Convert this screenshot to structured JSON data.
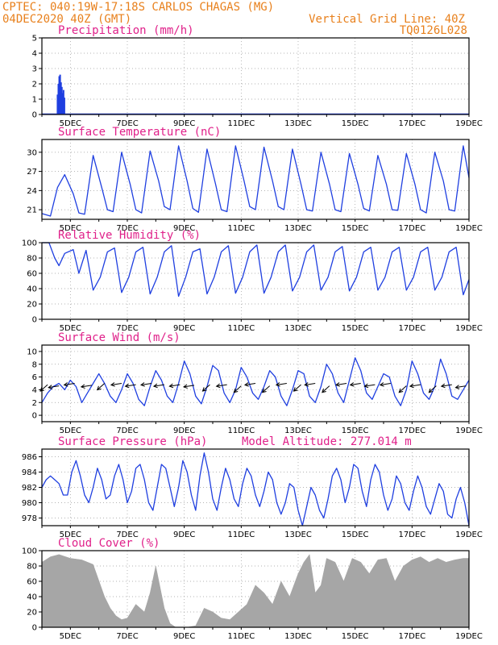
{
  "header": {
    "line1": "CPTEC:  040:19W-17:18S  CARLOS CHAGAS (MG)",
    "line2": "04DEC2020 40Z (GMT)",
    "grid_note": "Vertical Grid Line: 40Z",
    "code": "TQ0126L028"
  },
  "colors": {
    "header": "#e8801c",
    "title": "#e0218a",
    "series": "#1f3fe0",
    "cloud": "#a6a6a6",
    "wind_arrow": "#000000",
    "grid": "#9a9a9a"
  },
  "x_axis": {
    "start_day": 4,
    "end_day": 19,
    "tick_days": [
      5,
      7,
      9,
      11,
      13,
      15,
      17,
      19
    ],
    "tick_labels": [
      "5DEC",
      "7DEC",
      "9DEC",
      "11DEC",
      "13DEC",
      "15DEC",
      "17DEC",
      "19DEC"
    ]
  },
  "chart_data": [
    {
      "id": "precip",
      "type": "bar",
      "title": "Precipitation (mm/h)",
      "ylim": [
        0,
        5
      ],
      "yticks": [
        0,
        1,
        2,
        3,
        4,
        5
      ],
      "grid": true,
      "x": [
        4.55,
        4.58,
        4.61,
        4.64,
        4.67,
        4.7,
        4.73,
        4.76,
        4.79
      ],
      "values": [
        1.3,
        2.0,
        2.5,
        2.6,
        2.1,
        1.8,
        1.4,
        1.6,
        1.1
      ]
    },
    {
      "id": "temp",
      "type": "line",
      "title": "Surface Temperature (nC)",
      "ylim": [
        19.5,
        32
      ],
      "yticks": [
        21,
        24,
        27,
        30
      ],
      "grid": true,
      "x": [
        4.0,
        4.3,
        4.55,
        4.8,
        5.1,
        5.3,
        5.5,
        5.8,
        6.1,
        6.3,
        6.5,
        6.8,
        7.1,
        7.3,
        7.5,
        7.8,
        8.1,
        8.3,
        8.5,
        8.8,
        9.1,
        9.3,
        9.5,
        9.8,
        10.1,
        10.3,
        10.5,
        10.8,
        11.1,
        11.3,
        11.5,
        11.8,
        12.1,
        12.3,
        12.5,
        12.8,
        13.1,
        13.3,
        13.5,
        13.8,
        14.1,
        14.3,
        14.5,
        14.8,
        15.1,
        15.3,
        15.5,
        15.8,
        16.1,
        16.3,
        16.5,
        16.8,
        17.1,
        17.3,
        17.5,
        17.8,
        18.1,
        18.3,
        18.5,
        18.8,
        19.0
      ],
      "y": [
        20.4,
        20.0,
        24.5,
        26.5,
        23.5,
        20.5,
        20.3,
        29.5,
        24.5,
        21.0,
        20.7,
        30.0,
        25.0,
        21.0,
        20.5,
        30.2,
        25.5,
        21.5,
        21.0,
        31.0,
        25.5,
        21.2,
        20.6,
        30.5,
        25.0,
        21.0,
        20.7,
        31.0,
        25.5,
        21.5,
        21.0,
        30.8,
        25.5,
        21.5,
        21.0,
        30.5,
        25.0,
        21.0,
        20.8,
        30.0,
        25.0,
        21.0,
        20.7,
        29.8,
        25.0,
        21.2,
        20.8,
        29.5,
        25.0,
        21.0,
        20.9,
        29.8,
        25.0,
        21.0,
        20.5,
        30.0,
        25.5,
        21.0,
        20.8,
        31.0,
        26.0
      ]
    },
    {
      "id": "rh",
      "type": "line",
      "title": "Relative Humidity (%)",
      "ylim": [
        0,
        100
      ],
      "yticks": [
        0,
        20,
        40,
        60,
        80,
        100
      ],
      "grid": true,
      "x": [
        4.0,
        4.25,
        4.45,
        4.6,
        4.8,
        5.1,
        5.3,
        5.55,
        5.8,
        6.05,
        6.3,
        6.55,
        6.8,
        7.05,
        7.3,
        7.55,
        7.8,
        8.05,
        8.3,
        8.55,
        8.8,
        9.05,
        9.3,
        9.55,
        9.8,
        10.05,
        10.3,
        10.55,
        10.8,
        11.05,
        11.3,
        11.55,
        11.8,
        12.05,
        12.3,
        12.55,
        12.8,
        13.05,
        13.3,
        13.55,
        13.8,
        14.05,
        14.3,
        14.55,
        14.8,
        15.05,
        15.3,
        15.55,
        15.8,
        16.05,
        16.3,
        16.55,
        16.8,
        17.05,
        17.3,
        17.55,
        17.8,
        18.05,
        18.3,
        18.55,
        18.8,
        19.0
      ],
      "y": [
        100,
        100,
        80,
        70,
        86,
        91,
        60,
        90,
        38,
        55,
        88,
        93,
        35,
        55,
        88,
        94,
        33,
        55,
        88,
        96,
        30,
        55,
        88,
        92,
        33,
        55,
        88,
        96,
        34,
        55,
        88,
        97,
        34,
        55,
        88,
        97,
        37,
        55,
        88,
        97,
        38,
        55,
        88,
        95,
        37,
        55,
        88,
        94,
        38,
        55,
        88,
        94,
        38,
        55,
        88,
        94,
        38,
        55,
        88,
        94,
        32,
        52
      ]
    },
    {
      "id": "wind",
      "type": "line",
      "title": "Surface Wind (m/s)",
      "ylim": [
        -1,
        11
      ],
      "yticks": [
        0,
        2,
        4,
        6,
        8,
        10
      ],
      "grid": true,
      "x": [
        4.0,
        4.2,
        4.4,
        4.6,
        4.8,
        5.0,
        5.2,
        5.4,
        5.6,
        5.8,
        6.0,
        6.2,
        6.4,
        6.6,
        6.8,
        7.0,
        7.2,
        7.4,
        7.6,
        7.8,
        8.0,
        8.2,
        8.4,
        8.6,
        8.8,
        9.0,
        9.2,
        9.4,
        9.6,
        9.8,
        10.0,
        10.2,
        10.4,
        10.6,
        10.8,
        11.0,
        11.2,
        11.4,
        11.6,
        11.8,
        12.0,
        12.2,
        12.4,
        12.6,
        12.8,
        13.0,
        13.2,
        13.4,
        13.6,
        13.8,
        14.0,
        14.2,
        14.4,
        14.6,
        14.8,
        15.0,
        15.2,
        15.4,
        15.6,
        15.8,
        16.0,
        16.2,
        16.4,
        16.6,
        16.8,
        17.0,
        17.2,
        17.4,
        17.6,
        17.8,
        18.0,
        18.2,
        18.4,
        18.6,
        18.8,
        19.0
      ],
      "y": [
        2.0,
        3.5,
        4.5,
        5.0,
        4.0,
        5.5,
        4.5,
        2.0,
        3.5,
        5.0,
        6.5,
        5.0,
        3.0,
        2.0,
        4.0,
        6.5,
        5.0,
        2.5,
        1.5,
        4.5,
        7.0,
        5.5,
        3.0,
        2.0,
        5.0,
        8.5,
        6.5,
        3.0,
        1.8,
        4.5,
        7.8,
        7.0,
        3.5,
        2.0,
        4.0,
        7.5,
        6.0,
        3.5,
        2.5,
        4.5,
        7.0,
        6.0,
        3.0,
        1.5,
        4.0,
        7.0,
        6.5,
        3.0,
        2.0,
        4.5,
        8.0,
        6.5,
        3.5,
        2.0,
        5.5,
        9.0,
        7.0,
        3.5,
        2.5,
        4.5,
        6.5,
        6.0,
        3.0,
        1.5,
        4.0,
        8.5,
        6.5,
        3.5,
        2.5,
        4.5,
        8.8,
        6.5,
        3.0,
        2.5,
        4.0,
        5.5
      ],
      "arrows": [
        {
          "day": 4.2,
          "y": 4.8,
          "dir": "SW"
        },
        {
          "day": 4.6,
          "y": 4.6,
          "dir": "W"
        },
        {
          "day": 5.15,
          "y": 5.0,
          "dir": "W"
        },
        {
          "day": 5.75,
          "y": 4.7,
          "dir": "W"
        },
        {
          "day": 6.2,
          "y": 5.0,
          "dir": "SW"
        },
        {
          "day": 6.8,
          "y": 5.0,
          "dir": "W"
        },
        {
          "day": 7.3,
          "y": 4.8,
          "dir": "W"
        },
        {
          "day": 7.85,
          "y": 5.0,
          "dir": "W"
        },
        {
          "day": 8.3,
          "y": 4.8,
          "dir": "W"
        },
        {
          "day": 8.85,
          "y": 4.8,
          "dir": "W"
        },
        {
          "day": 9.35,
          "y": 4.7,
          "dir": "W"
        },
        {
          "day": 9.9,
          "y": 4.8,
          "dir": "SW"
        },
        {
          "day": 10.5,
          "y": 4.8,
          "dir": "W"
        },
        {
          "day": 11.0,
          "y": 4.6,
          "dir": "SW"
        },
        {
          "day": 11.5,
          "y": 5.0,
          "dir": "W"
        },
        {
          "day": 12.0,
          "y": 4.6,
          "dir": "SW"
        },
        {
          "day": 12.6,
          "y": 5.0,
          "dir": "W"
        },
        {
          "day": 13.1,
          "y": 4.8,
          "dir": "SW"
        },
        {
          "day": 13.6,
          "y": 5.0,
          "dir": "W"
        },
        {
          "day": 14.1,
          "y": 4.6,
          "dir": "SW"
        },
        {
          "day": 14.7,
          "y": 5.0,
          "dir": "W"
        },
        {
          "day": 15.2,
          "y": 5.0,
          "dir": "W"
        },
        {
          "day": 15.7,
          "y": 4.8,
          "dir": "W"
        },
        {
          "day": 16.25,
          "y": 5.0,
          "dir": "W"
        },
        {
          "day": 16.8,
          "y": 4.6,
          "dir": "SW"
        },
        {
          "day": 17.3,
          "y": 4.8,
          "dir": "W"
        },
        {
          "day": 17.85,
          "y": 4.6,
          "dir": "SW"
        },
        {
          "day": 18.4,
          "y": 4.8,
          "dir": "W"
        },
        {
          "day": 18.9,
          "y": 4.6,
          "dir": "W"
        }
      ]
    },
    {
      "id": "pressure",
      "type": "line",
      "title": "Surface Pressure (hPa)",
      "annotation": "Model Altitude: 277.014 m",
      "ylim": [
        977,
        987
      ],
      "yticks": [
        978,
        980,
        982,
        984,
        986
      ],
      "grid": true,
      "x": [
        4.0,
        4.15,
        4.3,
        4.45,
        4.6,
        4.75,
        4.9,
        5.05,
        5.2,
        5.35,
        5.5,
        5.65,
        5.8,
        5.95,
        6.1,
        6.25,
        6.4,
        6.55,
        6.7,
        6.85,
        7.0,
        7.15,
        7.3,
        7.45,
        7.6,
        7.75,
        7.9,
        8.05,
        8.2,
        8.35,
        8.5,
        8.65,
        8.8,
        8.95,
        9.1,
        9.25,
        9.4,
        9.55,
        9.7,
        9.85,
        10.0,
        10.15,
        10.3,
        10.45,
        10.6,
        10.75,
        10.9,
        11.05,
        11.2,
        11.35,
        11.5,
        11.65,
        11.8,
        11.95,
        12.1,
        12.25,
        12.4,
        12.55,
        12.7,
        12.85,
        13.0,
        13.15,
        13.3,
        13.45,
        13.6,
        13.75,
        13.9,
        14.05,
        14.2,
        14.35,
        14.5,
        14.65,
        14.8,
        14.95,
        15.1,
        15.25,
        15.4,
        15.55,
        15.7,
        15.85,
        16.0,
        16.15,
        16.3,
        16.45,
        16.6,
        16.75,
        16.9,
        17.05,
        17.2,
        17.35,
        17.5,
        17.65,
        17.8,
        17.95,
        18.1,
        18.25,
        18.4,
        18.55,
        18.7,
        18.85,
        19.0
      ],
      "y": [
        982.0,
        983.0,
        983.5,
        983.0,
        982.5,
        981.0,
        981.0,
        984.0,
        985.5,
        983.5,
        981.0,
        980.0,
        982.0,
        984.5,
        983.0,
        980.5,
        981.0,
        983.5,
        985.0,
        983.0,
        980.0,
        981.5,
        984.5,
        985.0,
        983.0,
        980.0,
        979.0,
        982.0,
        985.0,
        984.5,
        982.0,
        979.5,
        982.0,
        985.5,
        984.0,
        981.0,
        979.0,
        983.5,
        986.5,
        984.0,
        980.5,
        979.0,
        982.0,
        984.5,
        983.0,
        980.5,
        979.5,
        982.5,
        984.5,
        983.5,
        981.0,
        979.5,
        981.5,
        984.0,
        983.0,
        980.0,
        978.5,
        980.0,
        982.5,
        982.0,
        979.0,
        977.0,
        979.5,
        982.0,
        981.0,
        979.0,
        978.0,
        980.5,
        983.5,
        984.5,
        983.0,
        980.0,
        982.0,
        985.0,
        984.5,
        981.5,
        979.5,
        983.0,
        985.0,
        984.0,
        981.0,
        979.0,
        980.5,
        983.5,
        982.5,
        980.0,
        979.0,
        981.5,
        983.5,
        982.0,
        979.5,
        978.5,
        980.5,
        982.5,
        981.5,
        978.5,
        978.0,
        980.5,
        982.0,
        980.0,
        977.0
      ]
    },
    {
      "id": "cloud",
      "type": "area",
      "title": "Cloud Cover (%)",
      "ylim": [
        0,
        100
      ],
      "yticks": [
        0,
        20,
        40,
        60,
        80,
        100
      ],
      "grid": true,
      "x": [
        4.0,
        4.3,
        4.6,
        5.0,
        5.4,
        5.8,
        6.2,
        6.4,
        6.6,
        6.8,
        7.0,
        7.3,
        7.6,
        7.8,
        8.0,
        8.3,
        8.5,
        8.7,
        8.9,
        9.1,
        9.4,
        9.7,
        10.0,
        10.3,
        10.6,
        10.9,
        11.2,
        11.5,
        11.8,
        12.1,
        12.4,
        12.7,
        13.0,
        13.2,
        13.4,
        13.6,
        13.8,
        14.0,
        14.3,
        14.6,
        14.9,
        15.2,
        15.5,
        15.8,
        16.1,
        16.4,
        16.7,
        17.0,
        17.3,
        17.6,
        17.9,
        18.2,
        18.5,
        18.8,
        19.0
      ],
      "y": [
        85,
        92,
        95,
        90,
        88,
        82,
        40,
        25,
        15,
        10,
        12,
        30,
        20,
        45,
        80,
        25,
        5,
        0,
        0,
        0,
        2,
        25,
        20,
        12,
        10,
        20,
        30,
        55,
        45,
        30,
        60,
        40,
        70,
        85,
        95,
        45,
        55,
        90,
        85,
        60,
        90,
        85,
        70,
        88,
        90,
        60,
        80,
        88,
        92,
        85,
        90,
        85,
        88,
        90,
        90
      ]
    }
  ]
}
